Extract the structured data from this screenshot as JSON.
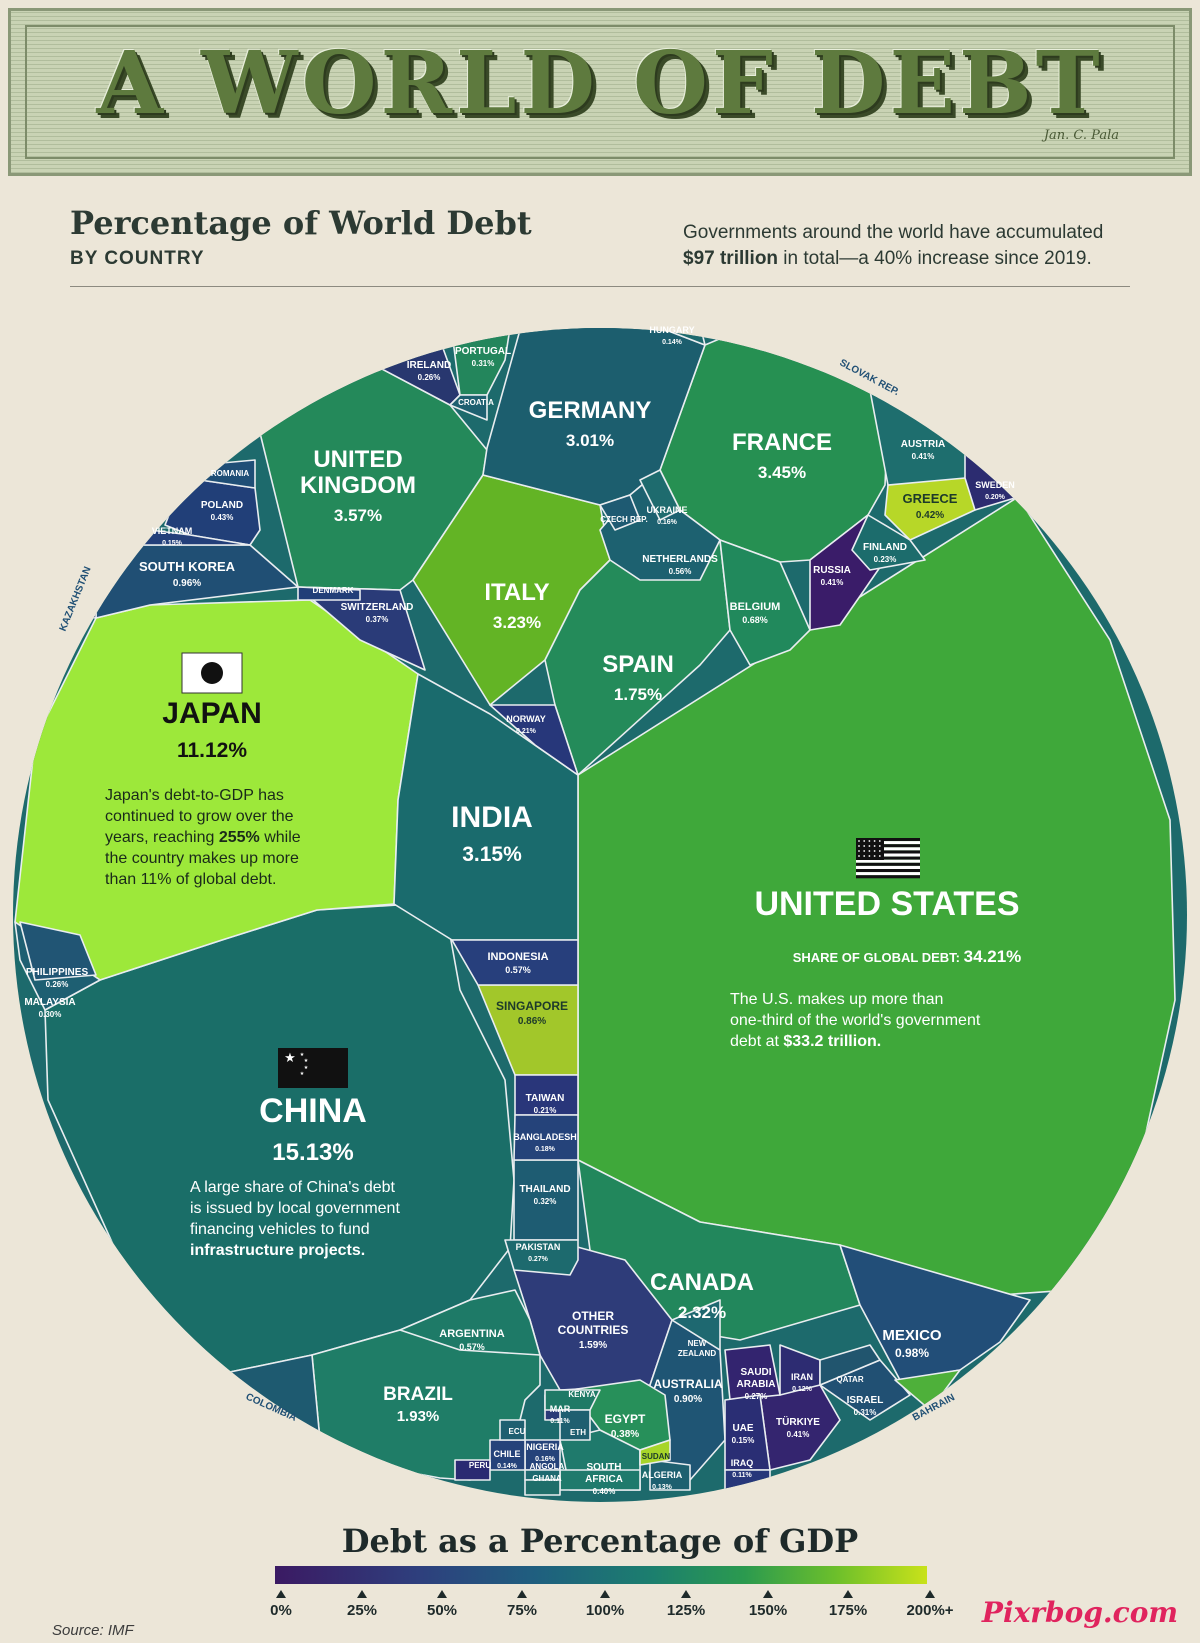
{
  "banner": {
    "title": "A WORLD OF DEBT",
    "signature": "Jan. C. Pala"
  },
  "header": {
    "title": "Percentage of World Debt",
    "subtitle": "BY COUNTRY",
    "intro_line1": "Governments around the world have accumulated",
    "intro_bold": "$97 trillion",
    "intro_line2": " in total—a 40% increase since 2019."
  },
  "notes": {
    "japan": [
      "Japan's debt-to-GDP has",
      "continued to grow over the",
      "years, reaching ",
      "255%",
      " while",
      "the country makes up more",
      "than 11% of global debt."
    ],
    "us_share_label": "SHARE OF GLOBAL DEBT:",
    "us": [
      "The U.S. makes up more than",
      "one-third of the world's government",
      "debt at ",
      "$33.2 trillion."
    ],
    "china": [
      "A large share of China's debt",
      "is issued by local government",
      "financing vehicles to fund",
      "infrastructure projects."
    ]
  },
  "legend": {
    "title": "Debt as a Percentage of GDP",
    "ticks": [
      "0%",
      "25%",
      "50%",
      "75%",
      "100%",
      "125%",
      "150%",
      "175%",
      "200%+"
    ],
    "colors": [
      "#3b1a63",
      "#2e3f7d",
      "#1f5f7f",
      "#1c7f6e",
      "#2b9a4f",
      "#6cbf2b",
      "#c9e21a"
    ]
  },
  "footer": {
    "source": "Source: IMF",
    "brand": "Pixrbog.com"
  },
  "chart_data": {
    "type": "voronoi-treemap",
    "title": "Percentage of World Debt",
    "subtitle": "BY COUNTRY",
    "value_label": "Share of global government debt (%)",
    "color_label": "Debt as a Percentage of GDP",
    "countries": [
      {
        "name": "UNITED STATES",
        "share": 34.21,
        "share_text": "34.21%",
        "color": "#3fa83a"
      },
      {
        "name": "CHINA",
        "share": 15.13,
        "share_text": "15.13%",
        "color": "#1a6e68"
      },
      {
        "name": "JAPAN",
        "share": 11.12,
        "share_text": "11.12%",
        "color": "#9de83a"
      },
      {
        "name": "UNITED KINGDOM",
        "share": 3.57,
        "share_text": "3.57%",
        "color": "#24895a"
      },
      {
        "name": "FRANCE",
        "share": 3.45,
        "share_text": "3.45%",
        "color": "#269052"
      },
      {
        "name": "ITALY",
        "share": 3.23,
        "share_text": "3.23%",
        "color": "#63b425"
      },
      {
        "name": "INDIA",
        "share": 3.15,
        "share_text": "3.15%",
        "color": "#1a6b6d"
      },
      {
        "name": "GERMANY",
        "share": 3.01,
        "share_text": "3.01%",
        "color": "#1c5e6e"
      },
      {
        "name": "CANADA",
        "share": 2.32,
        "share_text": "2.32%",
        "color": "#22875c"
      },
      {
        "name": "BRAZIL",
        "share": 1.93,
        "share_text": "1.93%",
        "color": "#1f7d67"
      },
      {
        "name": "SPAIN",
        "share": 1.75,
        "share_text": "1.75%",
        "color": "#248b5a"
      },
      {
        "name": "OTHER COUNTRIES",
        "share": 1.59,
        "share_text": "1.59%",
        "color": "#2e3c79"
      },
      {
        "name": "MEXICO",
        "share": 0.98,
        "share_text": "0.98%",
        "color": "#224e78"
      },
      {
        "name": "SOUTH KOREA",
        "share": 0.96,
        "share_text": "0.96%",
        "color": "#204f74"
      },
      {
        "name": "AUSTRALIA",
        "share": 0.9,
        "share_text": "0.90%",
        "color": "#1f5574"
      },
      {
        "name": "SINGAPORE",
        "share": 0.86,
        "share_text": "0.86%",
        "color": "#a2c72a"
      },
      {
        "name": "BELGIUM",
        "share": 0.68,
        "share_text": "0.68%",
        "color": "#21895c"
      },
      {
        "name": "INDONESIA",
        "share": 0.57,
        "share_text": "0.57%",
        "color": "#273f7c"
      },
      {
        "name": "ARGENTINA",
        "share": 0.57,
        "share_text": "0.57%",
        "color": "#1e7a67"
      },
      {
        "name": "NETHERLANDS",
        "share": 0.56,
        "share_text": "0.56%",
        "color": "#1d6170"
      },
      {
        "name": "POLAND",
        "share": 0.43,
        "share_text": "0.43%",
        "color": "#213f78"
      },
      {
        "name": "GREECE",
        "share": 0.42,
        "share_text": "0.42%",
        "color": "#b7d728"
      },
      {
        "name": "AUSTRIA",
        "share": 0.41,
        "share_text": "0.41%",
        "color": "#1e6e6e"
      },
      {
        "name": "RUSSIA",
        "share": 0.41,
        "share_text": "0.41%",
        "color": "#3a1c69"
      },
      {
        "name": "TÜRKIYE",
        "share": 0.41,
        "share_text": "0.41%",
        "color": "#34256f"
      },
      {
        "name": "SOUTH AFRICA",
        "share": 0.4,
        "share_text": "0.40%",
        "color": "#1f7a6c"
      },
      {
        "name": "EGYPT",
        "share": 0.38,
        "share_text": "0.38%",
        "color": "#27905a"
      },
      {
        "name": "SWITZERLAND",
        "share": 0.37,
        "share_text": "0.37%",
        "color": "#2a3b78"
      },
      {
        "name": "THAILAND",
        "share": 0.32,
        "share_text": "0.32%",
        "color": "#1e5c72"
      },
      {
        "name": "PORTUGAL",
        "share": 0.31,
        "share_text": "0.31%",
        "color": "#23865c"
      },
      {
        "name": "ISRAEL",
        "share": 0.31,
        "share_text": "0.31%",
        "color": "#215073"
      },
      {
        "name": "MALAYSIA",
        "share": 0.3,
        "share_text": "0.30%",
        "color": "#1e5f72"
      },
      {
        "name": "SAUDI ARABIA",
        "share": 0.27,
        "share_text": "0.27%",
        "color": "#33246f"
      },
      {
        "name": "PAKISTAN",
        "share": 0.27,
        "share_text": "0.27%",
        "color": "#1d6a6e"
      },
      {
        "name": "PHILIPPINES",
        "share": 0.26,
        "share_text": "0.26%",
        "color": "#215574"
      },
      {
        "name": "IRELAND",
        "share": 0.26,
        "share_text": "0.26%",
        "color": "#28376f"
      },
      {
        "name": "FINLAND",
        "share": 0.23,
        "share_text": "0.23%",
        "color": "#1c6c6c"
      },
      {
        "name": "TAIWAN",
        "share": 0.21,
        "share_text": "0.21%",
        "color": "#29367a"
      },
      {
        "name": "NORWAY",
        "share": 0.21,
        "share_text": "0.21%",
        "color": "#27377a"
      },
      {
        "name": "SWEDEN",
        "share": 0.2,
        "share_text": "0.20%",
        "color": "#2c2c70"
      },
      {
        "name": "BANGLADESH",
        "share": 0.18,
        "share_text": "0.18%",
        "color": "#25437a"
      },
      {
        "name": "UKRAINE",
        "share": 0.16,
        "share_text": "0.16%",
        "color": "#1e6b6e"
      },
      {
        "name": "NIGERIA",
        "share": 0.16,
        "share_text": "0.16%",
        "color": "#25437a"
      },
      {
        "name": "VIETNAM",
        "share": 0.15,
        "share_text": "0.15%",
        "color": "#233f7a"
      },
      {
        "name": "UAE",
        "share": 0.15,
        "share_text": "0.15%",
        "color": "#2a2e74"
      },
      {
        "name": "HUNGARY",
        "share": 0.14,
        "share_text": "0.14%",
        "color": "#1e6a6e"
      },
      {
        "name": "CHILE",
        "share": 0.14,
        "share_text": "0.14%",
        "color": "#25437a"
      },
      {
        "name": "ALGERIA",
        "share": 0.13,
        "share_text": "0.13%",
        "color": "#1e6070"
      },
      {
        "name": "IRAN",
        "share": 0.12,
        "share_text": "0.12%",
        "color": "#2d2c72"
      },
      {
        "name": "MAR",
        "share": 0.11,
        "share_text": "0.11%",
        "color": "#2a3a78"
      },
      {
        "name": "IRAQ",
        "share": 0.11,
        "share_text": "0.11%",
        "color": "#27377a"
      },
      {
        "name": "SOUTH AFRICA (extra)",
        "share": null,
        "share_text": "",
        "color": "#1f7a6c"
      },
      {
        "name": "CROATIA",
        "share": null,
        "share_text": "",
        "color": "#1e6070"
      },
      {
        "name": "CZECH REP.",
        "share": null,
        "share_text": "",
        "color": "#1e5a72"
      },
      {
        "name": "DENMARK",
        "share": null,
        "share_text": "",
        "color": "#223f78"
      },
      {
        "name": "ROMANIA",
        "share": null,
        "share_text": "",
        "color": "#1f4e76"
      },
      {
        "name": "KAZAKHSTAN",
        "share": null,
        "share_text": "",
        "color": "#2a2470"
      },
      {
        "name": "SLOVAK REP.",
        "share": null,
        "share_text": "",
        "color": "#1f4d74"
      },
      {
        "name": "COLOMBIA",
        "share": null,
        "share_text": "",
        "color": "#1e5a70"
      },
      {
        "name": "BAHRAIN",
        "share": null,
        "share_text": "",
        "color": "#4eb03a"
      },
      {
        "name": "QATAR",
        "share": null,
        "share_text": "",
        "color": "#21556e"
      },
      {
        "name": "NEW ZEALAND",
        "share": null,
        "share_text": "",
        "color": "#1e6870"
      },
      {
        "name": "KENYA",
        "share": null,
        "share_text": "",
        "color": "#1f7a66"
      },
      {
        "name": "ETH",
        "share": null,
        "share_text": "",
        "color": "#1f5f70"
      },
      {
        "name": "ECU",
        "share": null,
        "share_text": "",
        "color": "#1f5f70"
      },
      {
        "name": "PERU",
        "share": null,
        "share_text": "",
        "color": "#2a2a72"
      },
      {
        "name": "ANGOLA",
        "share": null,
        "share_text": "",
        "color": "#1e6a70"
      },
      {
        "name": "GHANA",
        "share": null,
        "share_text": "",
        "color": "#1f6e6a"
      },
      {
        "name": "SUDAN",
        "share": null,
        "share_text": "",
        "color": "#a7d52a"
      }
    ]
  }
}
